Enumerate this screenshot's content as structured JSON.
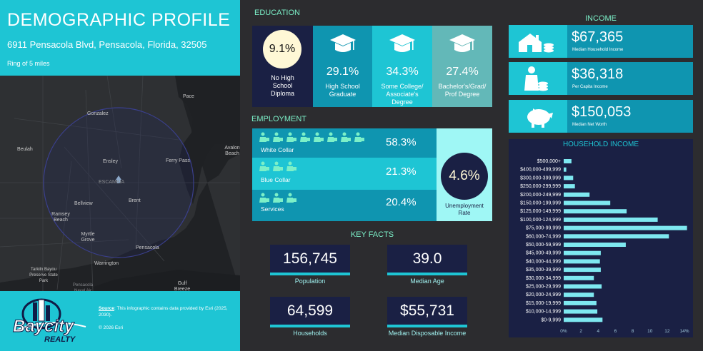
{
  "header": {
    "title": "DEMOGRAPHIC PROFILE",
    "address": "6911 Pensacola Blvd, Pensacola, Florida, 32505",
    "ring": "Ring of 5 miles"
  },
  "map": {
    "labels": [
      "Pace",
      "Gonzalez",
      "Beulah",
      "Ensley",
      "Ferry Pass",
      "Avalon Beach",
      "ESCAMBIA",
      "Bellview",
      "Brent",
      "Ramsey Beach",
      "Myrtle Grove",
      "Pensacola",
      "Warrington",
      "Tarkiln Bayou Preserve State Park",
      "Pensacola Naval Air",
      "Gulf Breeze"
    ]
  },
  "footer": {
    "logo_text": "Baycity",
    "logo_sub": "REALTY",
    "source_label": "Source",
    "source_text": ": This infographic contains data provided by Esri (2025, 2030).",
    "copyright": "© 2026 Esri"
  },
  "education": {
    "heading": "EDUCATION",
    "items": [
      {
        "pct": "9.1%",
        "label": "No High School Diploma"
      },
      {
        "pct": "29.1%",
        "label": "High School Graduate"
      },
      {
        "pct": "34.3%",
        "label": "Some College/ Associate's Degree"
      },
      {
        "pct": "27.4%",
        "label": "Bachelor's/Grad/ Prof Degree"
      }
    ]
  },
  "employment": {
    "heading": "EMPLOYMENT",
    "rows": [
      {
        "label": "White Collar",
        "pct": "58.3%"
      },
      {
        "label": "Blue Collar",
        "pct": "21.3%"
      },
      {
        "label": "Services",
        "pct": "20.4%"
      }
    ],
    "unemployment_pct": "4.6%",
    "unemployment_label": "Unemployment Rate"
  },
  "key_facts": {
    "heading": "KEY FACTS",
    "items": [
      {
        "value": "156,745",
        "label": "Population"
      },
      {
        "value": "39.0",
        "label": "Median Age"
      },
      {
        "value": "64,599",
        "label": "Households"
      },
      {
        "value": "$55,731",
        "label": "Median Disposable Income"
      }
    ]
  },
  "income": {
    "heading": "INCOME",
    "items": [
      {
        "value": "$67,365",
        "label": "Median Household Income",
        "icon": "house-icon"
      },
      {
        "value": "$36,318",
        "label": "Per Capita Income",
        "icon": "person-icon"
      },
      {
        "value": "$150,053",
        "label": "Median Net Worth",
        "icon": "piggy-bank-icon"
      }
    ]
  },
  "chart_data": {
    "type": "bar",
    "orientation": "horizontal",
    "title": "HOUSEHOLD INCOME",
    "categories": [
      "$500,000+",
      "$400,000-499,999",
      "$300,000-399,999",
      "$250,000-299,999",
      "$200,000-249,999",
      "$150,000-199,999",
      "$125,000-149,999",
      "$100,000-124,999",
      "$75,000-99,999",
      "$60,000-74,999",
      "$50,000-59,999",
      "$45,000-49,999",
      "$40,000-44,999",
      "$35,000-39,999",
      "$30,000-34,999",
      "$25,000-29,999",
      "$20,000-24,999",
      "$15,000-19,999",
      "$10,000-14,999",
      "$0-9,999"
    ],
    "values": [
      0.9,
      0.3,
      1.1,
      1.3,
      3.0,
      5.4,
      7.3,
      10.9,
      14.3,
      12.2,
      7.2,
      4.3,
      4.2,
      4.3,
      3.5,
      4.4,
      3.5,
      3.8,
      3.9,
      4.5
    ],
    "xlim": [
      0,
      14
    ],
    "xticks": [
      "0%",
      "2",
      "4",
      "6",
      "8",
      "10",
      "12",
      "14%"
    ],
    "bar_color": "#7ee8f0"
  },
  "colors": {
    "cyan": "#1ec5d4",
    "navy": "#1a2044",
    "mint": "#7cf0c8"
  }
}
